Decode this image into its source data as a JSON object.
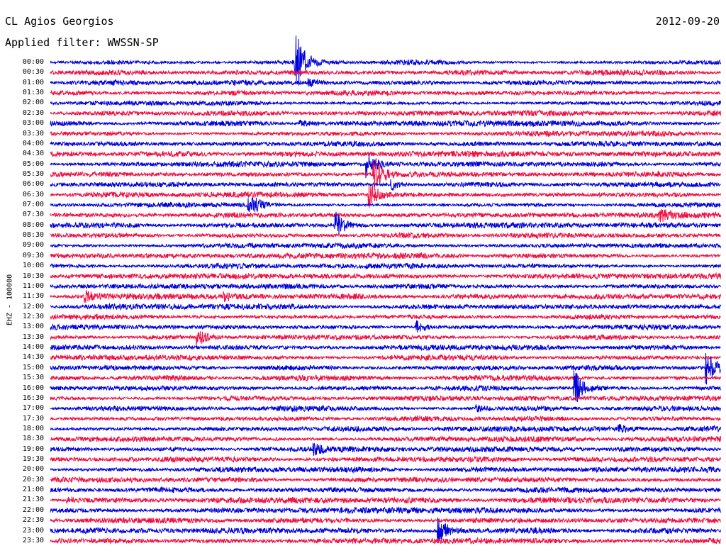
{
  "header": {
    "station": "CL Agios Georgios",
    "date": "2012-09-20",
    "filter": "Applied filter: WWSSN-SP"
  },
  "axis": {
    "channel_label": "EHZ - 100000"
  },
  "colors": {
    "even_trace": "#0000dd",
    "odd_trace": "#ee1144",
    "text": "#000000",
    "background": "#ffffff"
  },
  "chart_data": {
    "type": "line",
    "title": "",
    "y_tick_labels": [
      "00:00",
      "00:30",
      "01:00",
      "01:30",
      "02:00",
      "02:30",
      "03:00",
      "03:30",
      "04:00",
      "04:30",
      "05:00",
      "05:30",
      "06:00",
      "06:30",
      "07:00",
      "07:30",
      "08:00",
      "08:30",
      "09:00",
      "09:30",
      "10:00",
      "10:30",
      "11:00",
      "11:30",
      "12:00",
      "12:30",
      "13:00",
      "13:30",
      "14:00",
      "14:30",
      "15:00",
      "15:30",
      "16:00",
      "16:30",
      "17:00",
      "17:30",
      "18:00",
      "18:30",
      "19:00",
      "19:30",
      "20:00",
      "20:30",
      "21:00",
      "21:30",
      "22:00",
      "22:30",
      "23:00",
      "23:30"
    ],
    "trace_minutes": 30,
    "noise_level": 0.06,
    "events": [
      {
        "trace": "00:00",
        "minute": 11.0,
        "amplitude": 1.0
      },
      {
        "trace": "01:00",
        "minute": 11.6,
        "amplitude": 0.12
      },
      {
        "trace": "03:00",
        "minute": 11.2,
        "amplitude": 0.12
      },
      {
        "trace": "05:00",
        "minute": 14.2,
        "amplitude": 0.45
      },
      {
        "trace": "05:30",
        "minute": 14.5,
        "amplitude": 0.6
      },
      {
        "trace": "06:00",
        "minute": 15.3,
        "amplitude": 0.15
      },
      {
        "trace": "06:30",
        "minute": 14.3,
        "amplitude": 0.4
      },
      {
        "trace": "07:00",
        "minute": 8.9,
        "amplitude": 0.5
      },
      {
        "trace": "07:30",
        "minute": 27.3,
        "amplitude": 0.2
      },
      {
        "trace": "08:00",
        "minute": 12.8,
        "amplitude": 0.45
      },
      {
        "trace": "11:30",
        "minute": 1.6,
        "amplitude": 0.15
      },
      {
        "trace": "11:30",
        "minute": 7.8,
        "amplitude": 0.12
      },
      {
        "trace": "13:00",
        "minute": 16.4,
        "amplitude": 0.2
      },
      {
        "trace": "13:30",
        "minute": 6.6,
        "amplitude": 0.25
      },
      {
        "trace": "15:00",
        "minute": 29.4,
        "amplitude": 0.6
      },
      {
        "trace": "16:00",
        "minute": 23.5,
        "amplitude": 0.55
      },
      {
        "trace": "17:00",
        "minute": 19.1,
        "amplitude": 0.1
      },
      {
        "trace": "18:00",
        "minute": 25.5,
        "amplitude": 0.1
      },
      {
        "trace": "19:00",
        "minute": 11.8,
        "amplitude": 0.15
      },
      {
        "trace": "21:30",
        "minute": 0.8,
        "amplitude": 0.1
      },
      {
        "trace": "23:00",
        "minute": 17.4,
        "amplitude": 0.45
      }
    ]
  }
}
